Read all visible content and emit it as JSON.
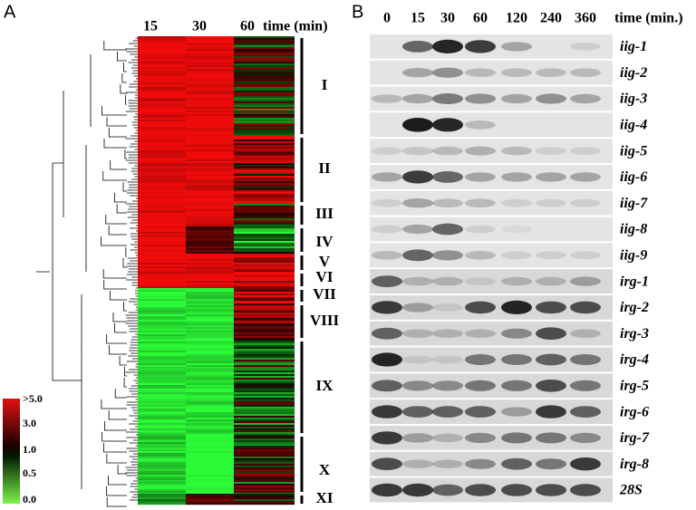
{
  "panel_a": {
    "label": "A",
    "columns": [
      "15",
      "30",
      "60"
    ],
    "time_label": "time (min)",
    "clusters": [
      "I",
      "II",
      "III",
      "IV",
      "V",
      "VI",
      "VII",
      "VIII",
      "IX",
      "X",
      "XI"
    ],
    "scale_labels": [
      ">5.0",
      "3.0",
      "1.0",
      "0.5",
      "0.0"
    ]
  },
  "panel_b": {
    "label": "B",
    "columns": [
      "0",
      "15",
      "30",
      "60",
      "120",
      "240",
      "360"
    ],
    "time_label": "time (min.)",
    "genes": [
      "iig-1",
      "iig-2",
      "iig-3",
      "iig-4",
      "iig-5",
      "iig-6",
      "iig-7",
      "iig-8",
      "iig-9",
      "irg-1",
      "irg-2",
      "irg-3",
      "irg-4",
      "irg-5",
      "irg-6",
      "irg-7",
      "irg-8",
      "28S"
    ]
  }
}
